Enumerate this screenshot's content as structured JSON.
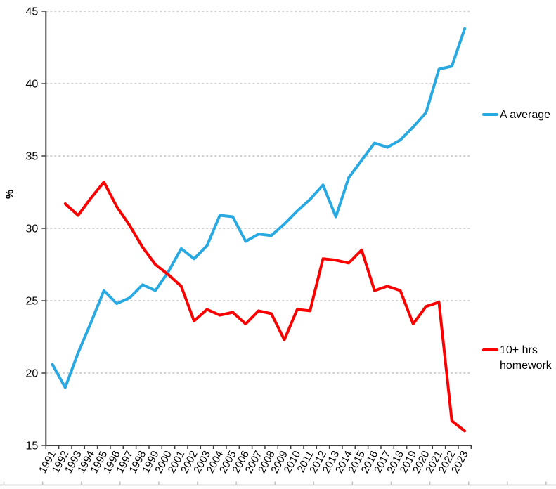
{
  "chart_data": {
    "type": "line",
    "title": "",
    "ylabel": "%",
    "ylim": [
      15,
      45
    ],
    "yticks": [
      45,
      40,
      35,
      30,
      25,
      20,
      15
    ],
    "grid": "horizontal-dashed",
    "legend_position": "right",
    "categories": [
      "1991",
      "1992",
      "1993",
      "1994",
      "1995",
      "1996",
      "1997",
      "1998",
      "1999",
      "2000",
      "2001",
      "2002",
      "2003",
      "2004",
      "2005",
      "2006",
      "2007",
      "2008",
      "2009",
      "2010",
      "2011",
      "2012",
      "2013",
      "2014",
      "2015",
      "2016",
      "2017",
      "2018",
      "2019",
      "2020",
      "2021",
      "2022",
      "2023"
    ],
    "series": [
      {
        "name": "A average",
        "color": "#29A9E1",
        "values": [
          20.6,
          19.0,
          21.4,
          23.5,
          25.7,
          24.8,
          25.2,
          26.1,
          25.7,
          27.0,
          28.6,
          27.9,
          28.8,
          30.9,
          30.8,
          29.1,
          29.6,
          29.5,
          30.3,
          31.2,
          32.0,
          33.0,
          30.8,
          33.5,
          34.7,
          35.9,
          35.6,
          36.1,
          37.0,
          38.0,
          41.0,
          41.2,
          43.8
        ]
      },
      {
        "name": "10+ hrs homework",
        "color": "#FB0000",
        "values": [
          null,
          31.7,
          30.9,
          32.1,
          33.2,
          31.5,
          30.2,
          28.7,
          27.5,
          26.8,
          26.0,
          23.6,
          24.4,
          24.0,
          24.2,
          23.4,
          24.3,
          24.1,
          22.3,
          24.4,
          24.3,
          27.9,
          27.8,
          27.6,
          28.5,
          25.7,
          26.0,
          25.7,
          23.4,
          24.6,
          24.9,
          16.7,
          16.0
        ]
      }
    ],
    "legend": {
      "a_average": "A average",
      "homework_line1": "10+ hrs",
      "homework_line2": "homework"
    },
    "axis_colors": {
      "axis": "#404040",
      "gridline": "#A6A6A6",
      "ruler": "#BFBFBF",
      "text": "#000000"
    }
  }
}
